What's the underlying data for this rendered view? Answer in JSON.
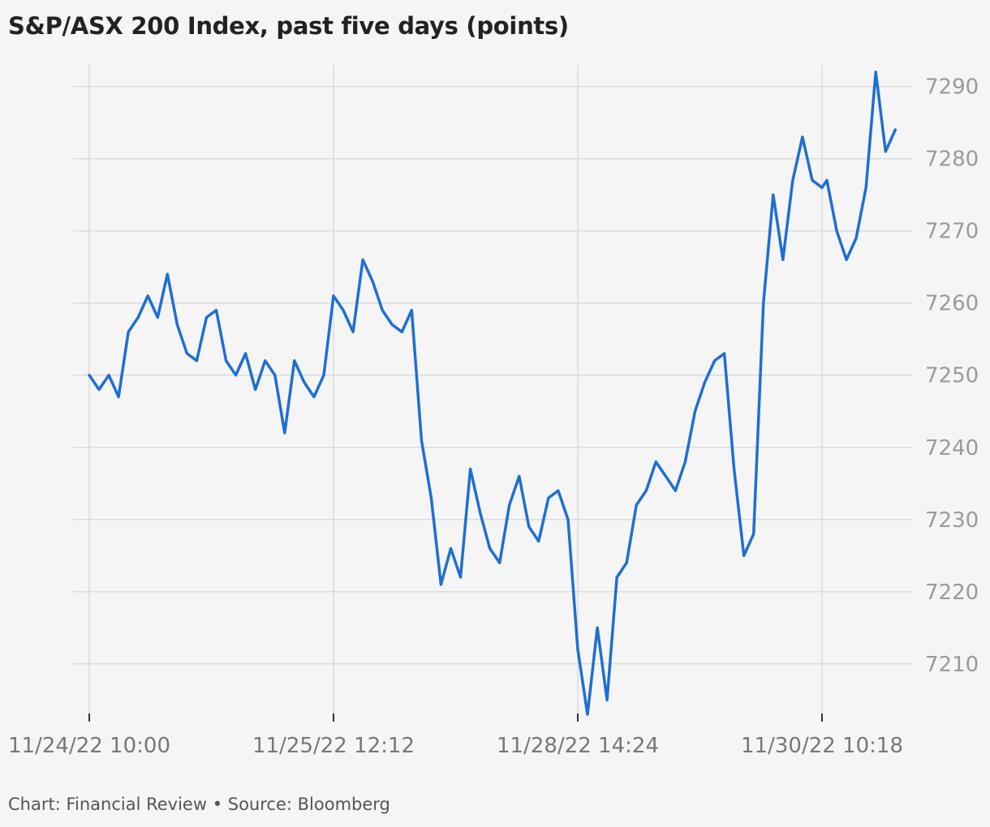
{
  "chart_data": {
    "type": "line",
    "title": "S&P/ASX 200 Index, past five days (points)",
    "x_tick_labels": [
      "11/24/22 10:00",
      "11/25/22 12:12",
      "11/28/22 14:24",
      "11/30/22 10:18"
    ],
    "y_ticks": [
      7210,
      7220,
      7230,
      7240,
      7250,
      7260,
      7270,
      7280,
      7290
    ],
    "ylim": [
      7202,
      7293
    ],
    "grid": true,
    "series": [
      {
        "color": "#1f6fd1",
        "x": [
          0,
          0.04,
          0.08,
          0.12,
          0.16,
          0.2,
          0.24,
          0.28,
          0.32,
          0.36,
          0.4,
          0.44,
          0.48,
          0.52,
          0.56,
          0.6,
          0.64,
          0.68,
          0.72,
          0.76,
          0.8,
          0.84,
          0.88,
          0.92,
          0.96,
          1,
          1.04,
          1.08,
          1.12,
          1.16,
          1.2,
          1.24,
          1.28,
          1.32,
          1.36,
          1.4,
          1.44,
          1.48,
          1.52,
          1.56,
          1.6,
          1.64,
          1.68,
          1.72,
          1.76,
          1.8,
          1.84,
          1.88,
          1.92,
          1.96,
          2,
          2.04,
          2.08,
          2.12,
          2.16,
          2.2,
          2.24,
          2.28,
          2.32,
          2.36,
          2.4,
          2.44,
          2.48,
          2.52,
          2.56,
          2.6,
          2.64,
          2.68,
          2.72,
          2.76,
          2.8,
          2.84,
          2.88,
          2.92,
          2.96,
          3,
          3.02,
          3.06,
          3.1,
          3.14,
          3.18,
          3.22,
          3.26,
          3.3
        ],
        "values": [
          7250,
          7248,
          7250,
          7247,
          7256,
          7258,
          7261,
          7258,
          7264,
          7257,
          7253,
          7252,
          7258,
          7259,
          7252,
          7250,
          7253,
          7248,
          7252,
          7250,
          7242,
          7252,
          7249,
          7247,
          7250,
          7261,
          7259,
          7256,
          7266,
          7263,
          7259,
          7257,
          7256,
          7259,
          7241,
          7233,
          7221,
          7226,
          7222,
          7237,
          7231,
          7226,
          7224,
          7232,
          7236,
          7229,
          7227,
          7233,
          7234,
          7230,
          7212,
          7203,
          7215,
          7205,
          7222,
          7224,
          7232,
          7234,
          7238,
          7236,
          7234,
          7238,
          7245,
          7249,
          7252,
          7253,
          7237,
          7225,
          7228,
          7260,
          7275,
          7266,
          7277,
          7283,
          7277,
          7276,
          7277,
          7270,
          7266,
          7269,
          7276,
          7292,
          7281,
          7284
        ]
      }
    ]
  },
  "footer": "Chart: Financial Review • Source: Bloomberg"
}
